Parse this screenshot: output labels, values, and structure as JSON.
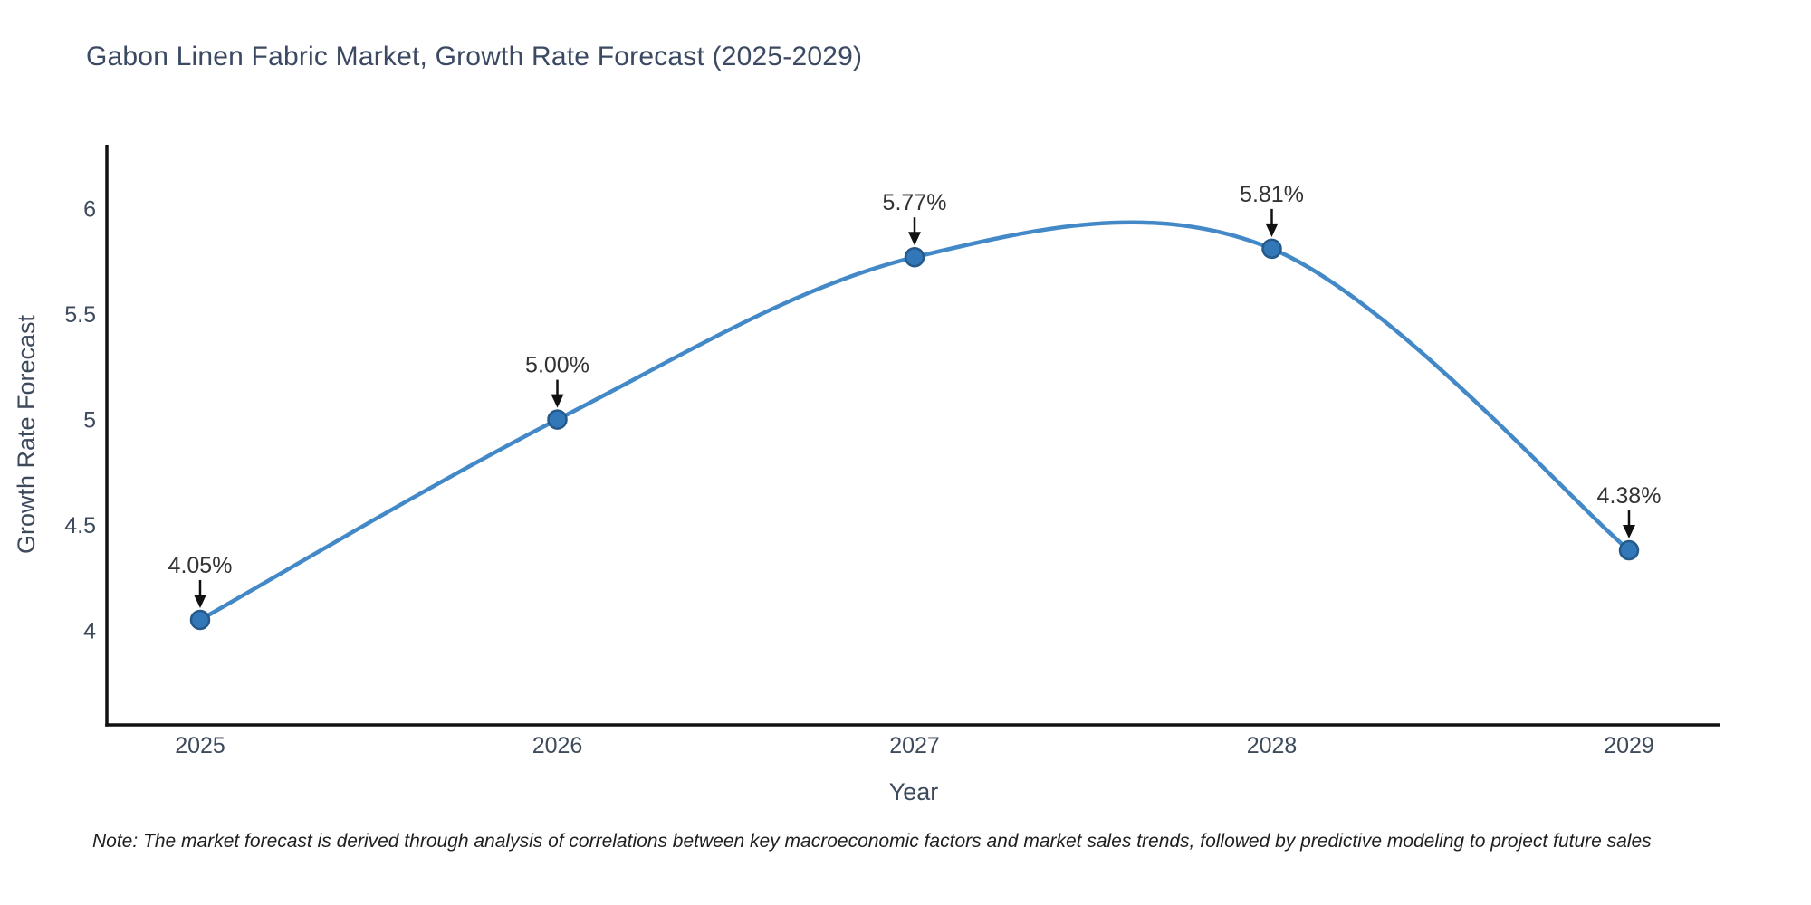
{
  "page": {
    "background": "#ffffff"
  },
  "chart_data": {
    "type": "line",
    "title": "Gabon Linen Fabric Market, Growth Rate Forecast (2025-2029)",
    "xlabel": "Year",
    "ylabel": "Growth Rate Forecast",
    "x": [
      2025,
      2026,
      2027,
      2028,
      2029
    ],
    "series": [
      {
        "name": "Growth Rate Forecast",
        "values": [
          4.05,
          5.0,
          5.77,
          5.81,
          4.38
        ]
      }
    ],
    "point_labels": [
      "4.05%",
      "5.00%",
      "5.77%",
      "5.81%",
      "4.38%"
    ],
    "yticks": [
      4,
      4.5,
      5,
      5.5,
      6
    ],
    "ytick_labels": [
      "4",
      "4.5",
      "5",
      "5.5",
      "6"
    ],
    "xtick_labels": [
      "2025",
      "2026",
      "2027",
      "2028",
      "2029"
    ],
    "ylim": [
      3.55,
      6.3
    ],
    "xlim": [
      2024.74,
      2029.26
    ],
    "line_shape": "spline",
    "grid": false,
    "legend_position": "none",
    "markers": true,
    "annotations_arrows": true,
    "colors": {
      "line": "#4389c7",
      "marker_fill": "#3277b7",
      "marker_edge": "#25598a",
      "axis_line": "#111111",
      "title_text": "#3b4962",
      "tick_text": "#3d4a5c",
      "axis_title_text": "#3d4a5c",
      "annotation_text": "#333333",
      "arrow": "#111111",
      "note_text": "#1f1f1f"
    }
  },
  "note": {
    "text": "Note: The market forecast is derived through analysis of correlations between key macroeconomic factors and market sales trends, followed by predictive modeling to project future sales"
  }
}
